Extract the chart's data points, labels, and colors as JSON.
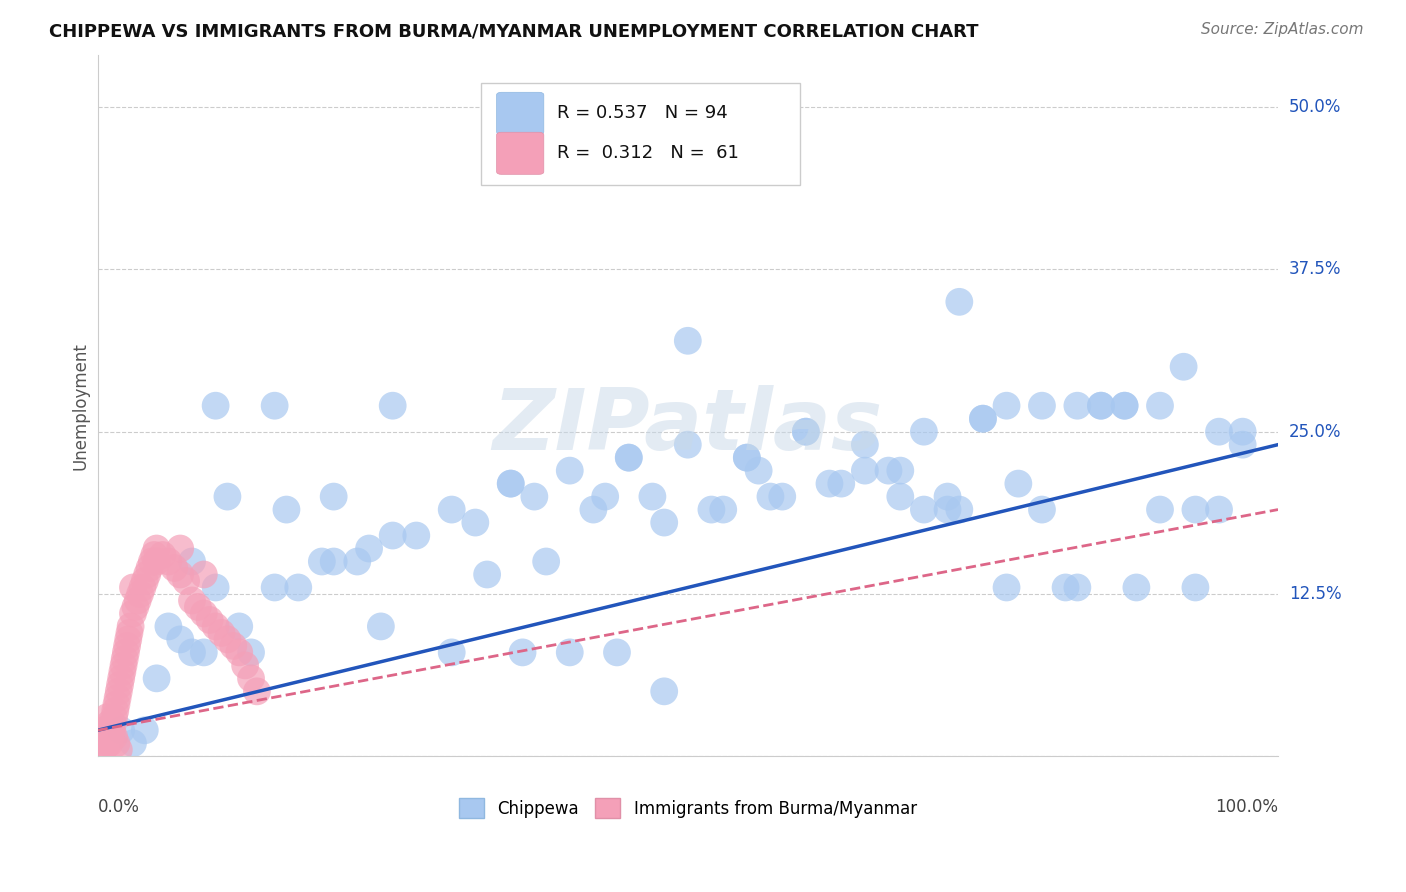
{
  "title": "CHIPPEWA VS IMMIGRANTS FROM BURMA/MYANMAR UNEMPLOYMENT CORRELATION CHART",
  "source": "Source: ZipAtlas.com",
  "ylabel": "Unemployment",
  "y_ticks": [
    0.0,
    0.125,
    0.25,
    0.375,
    0.5
  ],
  "y_tick_labels": [
    "",
    "12.5%",
    "25.0%",
    "37.5%",
    "50.0%"
  ],
  "r_chippewa": 0.537,
  "n_chippewa": 94,
  "r_burma": 0.312,
  "n_burma": 61,
  "chippewa_color": "#a8c8f0",
  "burma_color": "#f4a0b8",
  "chippewa_line_color": "#2255bb",
  "burma_line_color": "#dd6688",
  "legend_label_chippewa": "Chippewa",
  "legend_label_burma": "Immigrants from Burma/Myanmar",
  "chippewa_x": [
    0.87,
    0.97,
    0.75,
    0.68,
    0.82,
    0.92,
    0.78,
    0.95,
    0.73,
    0.85,
    0.62,
    0.55,
    0.45,
    0.38,
    0.5,
    0.6,
    0.7,
    0.8,
    0.9,
    0.4,
    0.3,
    0.2,
    0.1,
    0.15,
    0.25,
    0.35,
    0.52,
    0.65,
    0.77,
    0.88,
    0.93,
    0.83,
    0.72,
    0.58,
    0.47,
    0.42,
    0.33,
    0.22,
    0.12,
    0.08,
    0.06,
    0.04,
    0.02,
    0.03,
    0.05,
    0.07,
    0.09,
    0.11,
    0.13,
    0.17,
    0.19,
    0.23,
    0.27,
    0.32,
    0.37,
    0.43,
    0.48,
    0.53,
    0.57,
    0.63,
    0.67,
    0.73,
    0.77,
    0.83,
    0.87,
    0.93,
    0.97,
    0.6,
    0.7,
    0.8,
    0.9,
    0.5,
    0.4,
    0.3,
    0.2,
    0.1,
    0.15,
    0.25,
    0.35,
    0.45,
    0.55,
    0.65,
    0.75,
    0.85,
    0.95,
    0.72,
    0.48,
    0.36,
    0.24,
    0.16,
    0.08,
    0.56,
    0.68,
    0.44
  ],
  "chippewa_y": [
    0.27,
    0.24,
    0.26,
    0.2,
    0.13,
    0.3,
    0.21,
    0.19,
    0.35,
    0.27,
    0.21,
    0.23,
    0.23,
    0.15,
    0.24,
    0.25,
    0.25,
    0.27,
    0.27,
    0.22,
    0.19,
    0.15,
    0.13,
    0.13,
    0.17,
    0.21,
    0.19,
    0.22,
    0.13,
    0.13,
    0.19,
    0.13,
    0.19,
    0.2,
    0.2,
    0.19,
    0.14,
    0.15,
    0.1,
    0.15,
    0.1,
    0.02,
    0.02,
    0.01,
    0.06,
    0.09,
    0.08,
    0.2,
    0.08,
    0.13,
    0.15,
    0.16,
    0.17,
    0.18,
    0.2,
    0.2,
    0.18,
    0.19,
    0.2,
    0.21,
    0.22,
    0.19,
    0.27,
    0.27,
    0.27,
    0.13,
    0.25,
    0.25,
    0.19,
    0.19,
    0.19,
    0.32,
    0.08,
    0.08,
    0.2,
    0.27,
    0.27,
    0.27,
    0.21,
    0.23,
    0.23,
    0.24,
    0.26,
    0.27,
    0.25,
    0.2,
    0.05,
    0.08,
    0.1,
    0.19,
    0.08,
    0.22,
    0.22,
    0.08
  ],
  "burma_x": [
    0.005,
    0.007,
    0.008,
    0.01,
    0.011,
    0.012,
    0.013,
    0.014,
    0.015,
    0.016,
    0.017,
    0.018,
    0.019,
    0.02,
    0.021,
    0.022,
    0.023,
    0.024,
    0.025,
    0.026,
    0.027,
    0.028,
    0.03,
    0.032,
    0.034,
    0.036,
    0.038,
    0.04,
    0.042,
    0.044,
    0.046,
    0.048,
    0.05,
    0.055,
    0.06,
    0.065,
    0.07,
    0.075,
    0.08,
    0.085,
    0.09,
    0.095,
    0.1,
    0.105,
    0.11,
    0.115,
    0.12,
    0.125,
    0.13,
    0.135,
    0.005,
    0.008,
    0.01,
    0.012,
    0.014,
    0.016,
    0.018,
    0.03,
    0.05,
    0.07,
    0.09
  ],
  "burma_y": [
    0.01,
    0.008,
    0.009,
    0.01,
    0.015,
    0.02,
    0.025,
    0.03,
    0.035,
    0.04,
    0.045,
    0.05,
    0.055,
    0.06,
    0.065,
    0.07,
    0.075,
    0.08,
    0.085,
    0.09,
    0.095,
    0.1,
    0.11,
    0.115,
    0.12,
    0.125,
    0.13,
    0.135,
    0.14,
    0.145,
    0.15,
    0.155,
    0.16,
    0.155,
    0.15,
    0.145,
    0.14,
    0.135,
    0.12,
    0.115,
    0.11,
    0.105,
    0.1,
    0.095,
    0.09,
    0.085,
    0.08,
    0.07,
    0.06,
    0.05,
    0.02,
    0.03,
    0.025,
    0.02,
    0.015,
    0.01,
    0.005,
    0.13,
    0.15,
    0.16,
    0.14
  ],
  "xlim": [
    0.0,
    1.0
  ],
  "ylim": [
    0.0,
    0.54
  ]
}
